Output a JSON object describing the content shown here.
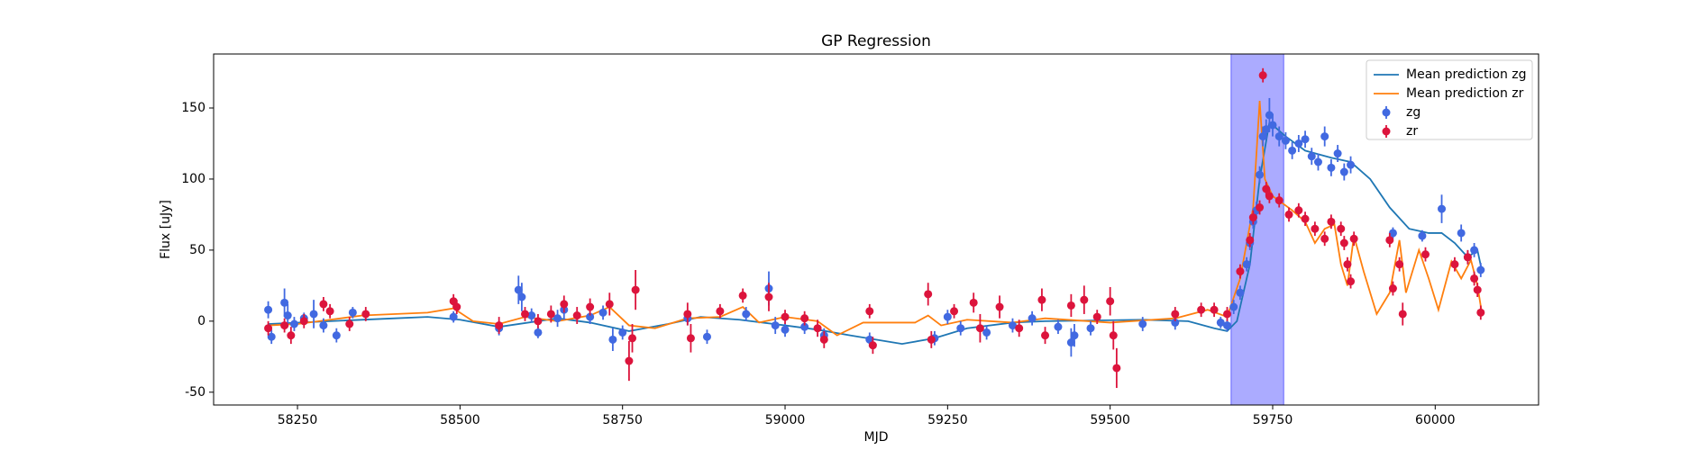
{
  "chart_data": {
    "type": "scatter",
    "title": "GP Regression",
    "x_label": "MJD",
    "y_label": "Flux [uJy]",
    "xlim": [
      58121,
      60159
    ],
    "ylim": [
      -59,
      188
    ],
    "xticks": [
      58250,
      58500,
      58750,
      59000,
      59250,
      59500,
      59750,
      60000
    ],
    "yticks": [
      -50,
      0,
      50,
      100,
      150
    ],
    "legend": "upper right",
    "shaded_region": {
      "x": [
        59686,
        59767
      ],
      "color": "#0000ff"
    },
    "series": [
      {
        "name": "Mean prediction zg",
        "type": "line",
        "color": "#1f77b4",
        "x": [
          58205,
          58300,
          58400,
          58450,
          58500,
          58560,
          58650,
          58700,
          58760,
          58820,
          58870,
          58930,
          59000,
          59050,
          59100,
          59180,
          59230,
          59280,
          59350,
          59400,
          59550,
          59620,
          59660,
          59680,
          59695,
          59715,
          59730,
          59745,
          59770,
          59800,
          59840,
          59870,
          59900,
          59930,
          59960,
          59990,
          60010,
          60030,
          60050,
          60065,
          60072
        ],
        "values": [
          -2,
          0,
          2,
          3,
          1,
          -4,
          2,
          -1,
          -7,
          -2,
          3,
          1,
          -3,
          -6,
          -10,
          -16,
          -12,
          -5,
          -1,
          0,
          1,
          0,
          -5,
          -7,
          0,
          40,
          100,
          140,
          130,
          120,
          115,
          112,
          100,
          80,
          65,
          62,
          62,
          55,
          45,
          50,
          35
        ]
      },
      {
        "name": "Mean prediction zr",
        "type": "line",
        "color": "#ff7f0e",
        "x": [
          58205,
          58250,
          58300,
          58350,
          58450,
          58490,
          58520,
          58560,
          58600,
          58650,
          58700,
          58730,
          58760,
          58800,
          58850,
          58900,
          58935,
          58960,
          59000,
          59050,
          59080,
          59120,
          59200,
          59220,
          59240,
          59280,
          59350,
          59400,
          59500,
          59600,
          59650,
          59680,
          59700,
          59720,
          59730,
          59738,
          59750,
          59780,
          59800,
          59815,
          59830,
          59845,
          59855,
          59865,
          59875,
          59890,
          59910,
          59930,
          59945,
          59955,
          59975,
          59990,
          60005,
          60025,
          60040,
          60055,
          60065,
          60072
        ],
        "values": [
          -3,
          -2,
          1,
          4,
          6,
          9,
          0,
          -2,
          3,
          0,
          4,
          10,
          -3,
          -5,
          2,
          3,
          10,
          -1,
          3,
          0,
          -10,
          -1,
          -1,
          4,
          -3,
          1,
          -1,
          2,
          -1,
          2,
          8,
          3,
          30,
          80,
          155,
          100,
          88,
          78,
          70,
          55,
          65,
          68,
          40,
          25,
          60,
          35,
          5,
          20,
          57,
          20,
          50,
          30,
          8,
          42,
          30,
          43,
          25,
          5
        ]
      },
      {
        "name": "zg",
        "type": "errorbar",
        "color": "#4169e1",
        "x": [
          58205,
          58210,
          58230,
          58235,
          58245,
          58260,
          58275,
          58290,
          58310,
          58335,
          58490,
          58560,
          58590,
          58595,
          58610,
          58620,
          58650,
          58660,
          58700,
          58720,
          58735,
          58750,
          58850,
          58880,
          58940,
          58975,
          58985,
          59000,
          59030,
          59060,
          59130,
          59230,
          59250,
          59270,
          59310,
          59350,
          59380,
          59420,
          59440,
          59445,
          59470,
          59550,
          59600,
          59670,
          59680,
          59690,
          59700,
          59710,
          59715,
          59720,
          59725,
          59730,
          59735,
          59740,
          59745,
          59750,
          59760,
          59770,
          59780,
          59790,
          59800,
          59810,
          59820,
          59830,
          59840,
          59850,
          59860,
          59870,
          59935,
          59980,
          60010,
          60040,
          60050,
          60060,
          60070
        ],
        "values": [
          8,
          -11,
          13,
          4,
          -2,
          2,
          5,
          -3,
          -10,
          6,
          3,
          -5,
          22,
          17,
          4,
          -8,
          2,
          8,
          3,
          6,
          -13,
          -8,
          2,
          -11,
          5,
          23,
          -3,
          -6,
          -4,
          -10,
          -13,
          -12,
          3,
          -5,
          -8,
          -3,
          2,
          -4,
          -15,
          -10,
          -5,
          -2,
          -1,
          -1,
          -3,
          10,
          20,
          40,
          55,
          70,
          78,
          103,
          130,
          135,
          145,
          138,
          130,
          127,
          120,
          125,
          128,
          116,
          112,
          130,
          108,
          118,
          105,
          110,
          62,
          60,
          79,
          62,
          45,
          50,
          36
        ],
        "errors": [
          6,
          5,
          10,
          8,
          5,
          4,
          10,
          5,
          5,
          4,
          4,
          5,
          10,
          10,
          5,
          4,
          6,
          7,
          5,
          5,
          8,
          5,
          5,
          5,
          5,
          12,
          6,
          5,
          5,
          5,
          5,
          5,
          5,
          5,
          5,
          5,
          5,
          5,
          10,
          8,
          5,
          5,
          5,
          4,
          4,
          5,
          5,
          5,
          5,
          5,
          6,
          6,
          7,
          7,
          12,
          8,
          7,
          6,
          6,
          6,
          6,
          6,
          6,
          7,
          6,
          6,
          6,
          6,
          4,
          4,
          10,
          6,
          5,
          5,
          5
        ]
      },
      {
        "name": "zr",
        "type": "errorbar",
        "color": "#dc143c",
        "x": [
          58205,
          58230,
          58240,
          58260,
          58290,
          58300,
          58330,
          58355,
          58490,
          58495,
          58560,
          58600,
          58620,
          58640,
          58660,
          58680,
          58700,
          58730,
          58760,
          58765,
          58770,
          58850,
          58855,
          58900,
          58935,
          58975,
          59000,
          59030,
          59050,
          59060,
          59130,
          59135,
          59220,
          59225,
          59260,
          59290,
          59300,
          59330,
          59360,
          59395,
          59400,
          59440,
          59460,
          59480,
          59500,
          59505,
          59510,
          59600,
          59640,
          59660,
          59680,
          59700,
          59715,
          59720,
          59730,
          59735,
          59740,
          59745,
          59760,
          59775,
          59790,
          59800,
          59815,
          59830,
          59840,
          59855,
          59860,
          59865,
          59870,
          59875,
          59930,
          59935,
          59945,
          59950,
          59985,
          60030,
          60050,
          60060,
          60065,
          60070
        ],
        "values": [
          -5,
          -3,
          -10,
          0,
          12,
          7,
          -2,
          5,
          14,
          10,
          -3,
          5,
          0,
          5,
          12,
          4,
          10,
          12,
          -28,
          -12,
          22,
          5,
          -12,
          7,
          18,
          17,
          3,
          2,
          -5,
          -13,
          7,
          -17,
          19,
          -13,
          7,
          13,
          -5,
          10,
          -5,
          15,
          -10,
          11,
          15,
          3,
          14,
          -10,
          -33,
          5,
          8,
          8,
          5,
          35,
          57,
          73,
          80,
          173,
          93,
          88,
          85,
          75,
          78,
          72,
          65,
          58,
          70,
          65,
          55,
          40,
          28,
          58,
          57,
          23,
          40,
          5,
          47,
          40,
          45,
          30,
          22,
          6
        ],
        "errors": [
          5,
          5,
          6,
          5,
          5,
          5,
          5,
          5,
          5,
          5,
          6,
          5,
          5,
          6,
          6,
          6,
          6,
          8,
          14,
          10,
          14,
          8,
          10,
          5,
          5,
          10,
          5,
          5,
          6,
          6,
          5,
          6,
          8,
          6,
          5,
          7,
          10,
          8,
          6,
          8,
          6,
          8,
          10,
          5,
          10,
          10,
          14,
          5,
          5,
          5,
          5,
          5,
          5,
          5,
          5,
          5,
          5,
          5,
          5,
          5,
          5,
          5,
          5,
          5,
          5,
          5,
          5,
          5,
          5,
          5,
          5,
          5,
          5,
          8,
          5,
          5,
          5,
          5,
          5,
          5
        ]
      }
    ]
  }
}
